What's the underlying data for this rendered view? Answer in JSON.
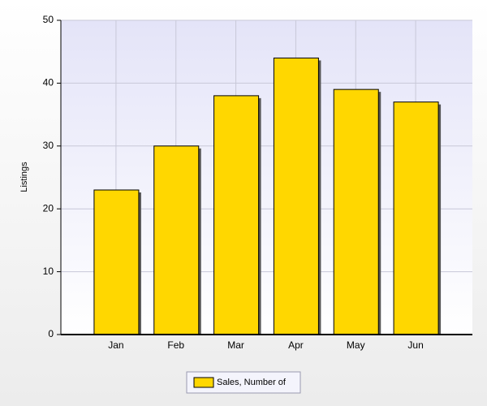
{
  "chart_data": {
    "type": "bar",
    "y_label": "Listings",
    "categories": [
      "Jan",
      "Feb",
      "Mar",
      "Apr",
      "May",
      "Jun"
    ],
    "series": [
      {
        "name": "Sales, Number of",
        "color": "#ffd700",
        "values": [
          23,
          30,
          38,
          44,
          39,
          37
        ]
      }
    ],
    "ylim": [
      0,
      50
    ],
    "yticks": [
      0,
      10,
      20,
      30,
      40,
      50
    ],
    "grid": true,
    "legend": "bottom"
  }
}
